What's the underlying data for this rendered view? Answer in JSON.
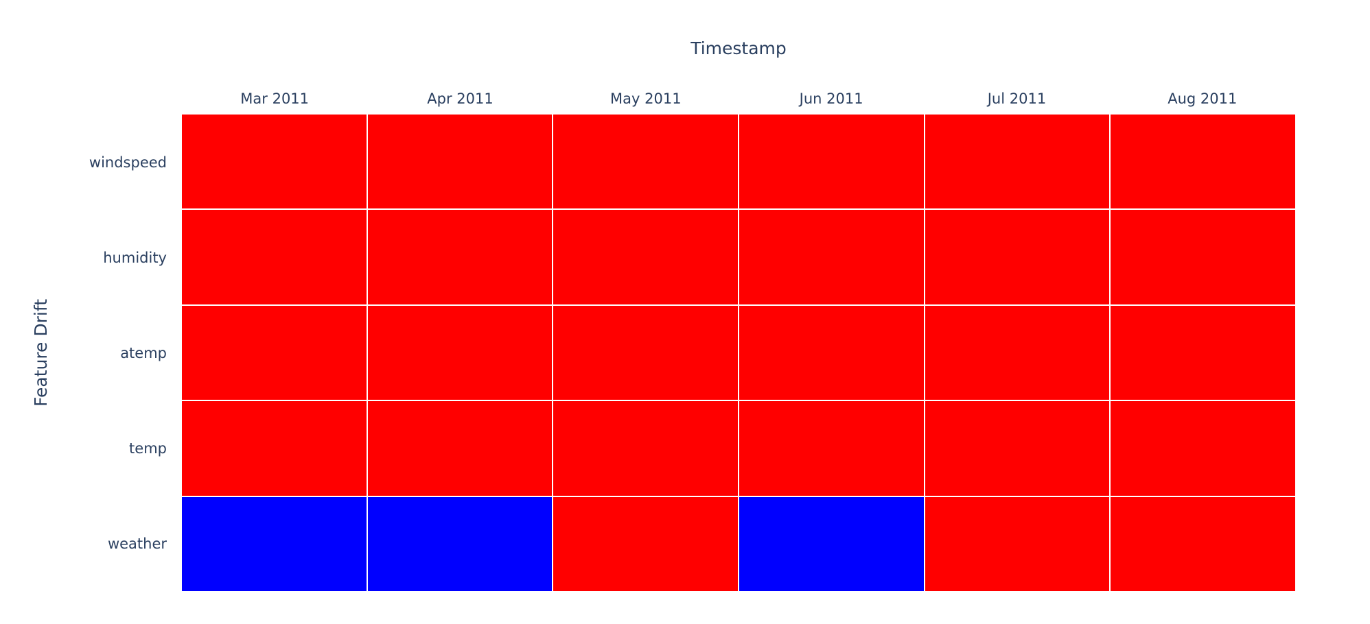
{
  "chart_data": {
    "type": "heatmap",
    "title": "",
    "xlabel": "Timestamp",
    "ylabel": "Feature Drift",
    "x": [
      "Mar 2011",
      "Apr 2011",
      "May 2011",
      "Jun 2011",
      "Jul 2011",
      "Aug 2011"
    ],
    "y": [
      "windspeed",
      "humidity",
      "atemp",
      "temp",
      "weather"
    ],
    "z": [
      [
        1,
        1,
        1,
        1,
        1,
        1
      ],
      [
        1,
        1,
        1,
        1,
        1,
        1
      ],
      [
        1,
        1,
        1,
        1,
        1,
        1
      ],
      [
        1,
        1,
        1,
        1,
        1,
        1
      ],
      [
        0,
        0,
        1,
        0,
        1,
        1
      ]
    ],
    "colors": {
      "drift": "#FF0000",
      "no_drift": "#0000FF",
      "text": "#2a3f5f",
      "gridline": "#FFFFFF",
      "background": "#FFFFFF"
    },
    "legend_position": "none",
    "grid": "on"
  }
}
